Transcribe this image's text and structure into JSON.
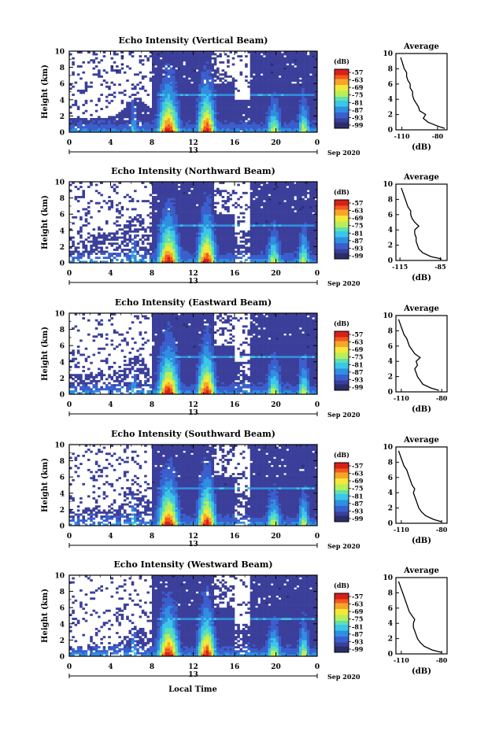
{
  "figure": {
    "x_axis_label": "Local Time",
    "date_label": "Sep 2020",
    "colorbar_unit": "(dB)",
    "colorbar_ticks": [
      "-57",
      "-63",
      "-69",
      "-75",
      "-81",
      "-87",
      "-93",
      "-99"
    ],
    "colormap": [
      "#2b2d6b",
      "#3b3f9a",
      "#3a5fcd",
      "#2f8fe0",
      "#3cc6e8",
      "#5fe0b0",
      "#b8ee5a",
      "#f4e83a",
      "#f7a52a",
      "#f05a1e",
      "#d8201a"
    ],
    "colorbar_top_color": "#d8201a",
    "colorbar_bottom_color": "#2b2d6b"
  },
  "chart_data": [
    {
      "type": "heatmap",
      "title": "Echo Intensity (Vertical Beam)",
      "ylabel": "Height (km)",
      "xlabel": "Local Time",
      "x_ticks": [
        "0",
        "4",
        "8",
        "12",
        "16",
        "20",
        "0"
      ],
      "date_tick": "13",
      "date_label": "Sep 2020",
      "y_ticks": [
        "0",
        "2",
        "4",
        "6",
        "8",
        "10"
      ],
      "xlim": [
        0,
        24
      ],
      "ylim": [
        0,
        10
      ],
      "colorbar": {
        "unit": "(dB)",
        "ticks": [
          "-57",
          "-63",
          "-69",
          "-75",
          "-81",
          "-87",
          "-93",
          "-99"
        ]
      },
      "average_profile": {
        "title": "Average",
        "xlabel": "(dB)",
        "x_ticks": [
          "-110",
          "-80"
        ],
        "xlim": [
          -115,
          -72
        ],
        "ylim": [
          0,
          10
        ],
        "y_ticks": [
          "0",
          "2",
          "4",
          "6",
          "8",
          "10"
        ],
        "heights": [
          0.2,
          0.5,
          1.0,
          1.5,
          2.0,
          2.5,
          3.0,
          3.5,
          4.0,
          4.5,
          5.0,
          5.5,
          6.0,
          6.5,
          7.0,
          7.5,
          8.0,
          8.5,
          9.0,
          9.5
        ],
        "values": [
          -74,
          -80,
          -88,
          -92,
          -90,
          -95,
          -96,
          -98,
          -100,
          -101,
          -101,
          -103,
          -103,
          -105,
          -106,
          -106,
          -108,
          -109,
          -110,
          -111
        ]
      }
    },
    {
      "type": "heatmap",
      "title": "Echo Intensity (Northward Beam)",
      "ylabel": "Height (km)",
      "xlabel": "Local Time",
      "x_ticks": [
        "0",
        "4",
        "8",
        "12",
        "16",
        "20",
        "0"
      ],
      "date_tick": "13",
      "date_label": "Sep 2020",
      "y_ticks": [
        "0",
        "2",
        "4",
        "6",
        "8",
        "10"
      ],
      "xlim": [
        0,
        24
      ],
      "ylim": [
        0,
        10
      ],
      "colorbar": {
        "unit": "(dB)",
        "ticks": [
          "-57",
          "-63",
          "-69",
          "-75",
          "-81",
          "-87",
          "-93",
          "-99"
        ]
      },
      "average_profile": {
        "title": "Average",
        "xlabel": "(dB)",
        "x_ticks": [
          "-115",
          "-85"
        ],
        "xlim": [
          -118,
          -80
        ],
        "ylim": [
          0,
          10
        ],
        "y_ticks": [
          "0",
          "2",
          "4",
          "6",
          "8",
          "10"
        ],
        "heights": [
          0.2,
          0.5,
          1.0,
          1.5,
          2.0,
          2.5,
          3.0,
          3.5,
          4.0,
          4.5,
          5.0,
          5.5,
          6.0,
          6.5,
          7.0,
          7.5,
          8.0,
          8.5,
          9.0,
          9.5
        ],
        "values": [
          -84,
          -92,
          -98,
          -101,
          -102,
          -103,
          -103,
          -104,
          -104,
          -101,
          -104,
          -106,
          -107,
          -107,
          -109,
          -110,
          -111,
          -112,
          -113,
          -114
        ]
      }
    },
    {
      "type": "heatmap",
      "title": "Echo Intensity (Eastward Beam)",
      "ylabel": "Height (km)",
      "xlabel": "Local Time",
      "x_ticks": [
        "0",
        "4",
        "8",
        "12",
        "16",
        "20",
        "0"
      ],
      "date_tick": "13",
      "date_label": "Sep 2020",
      "y_ticks": [
        "0",
        "2",
        "4",
        "6",
        "8",
        "10"
      ],
      "xlim": [
        0,
        24
      ],
      "ylim": [
        0,
        10
      ],
      "colorbar": {
        "unit": "(dB)",
        "ticks": [
          "-57",
          "-63",
          "-69",
          "-75",
          "-81",
          "-87",
          "-93",
          "-99"
        ]
      },
      "average_profile": {
        "title": "Average",
        "xlabel": "(dB)",
        "x_ticks": [
          "-110",
          "-80"
        ],
        "xlim": [
          -114,
          -76
        ],
        "ylim": [
          0,
          10
        ],
        "y_ticks": [
          "0",
          "2",
          "4",
          "6",
          "8",
          "10"
        ],
        "heights": [
          0.2,
          0.5,
          1.0,
          1.5,
          2.0,
          2.5,
          3.0,
          3.5,
          4.0,
          4.5,
          5.0,
          5.5,
          6.0,
          6.5,
          7.0,
          7.5,
          8.0,
          8.5,
          9.0,
          9.5
        ],
        "values": [
          -82,
          -88,
          -94,
          -96,
          -98,
          -99,
          -100,
          -98,
          -99,
          -96,
          -100,
          -102,
          -104,
          -105,
          -106,
          -108,
          -109,
          -110,
          -111,
          -112
        ]
      }
    },
    {
      "type": "heatmap",
      "title": "Echo Intensity (Southward Beam)",
      "ylabel": "Height (km)",
      "xlabel": "Local Time",
      "x_ticks": [
        "0",
        "4",
        "8",
        "12",
        "16",
        "20",
        "0"
      ],
      "date_tick": "13",
      "date_label": "Sep 2020",
      "y_ticks": [
        "0",
        "2",
        "4",
        "6",
        "8",
        "10"
      ],
      "xlim": [
        0,
        24
      ],
      "ylim": [
        0,
        10
      ],
      "colorbar": {
        "unit": "(dB)",
        "ticks": [
          "-57",
          "-63",
          "-69",
          "-75",
          "-81",
          "-87",
          "-93",
          "-99"
        ]
      },
      "average_profile": {
        "title": "Average",
        "xlabel": "(dB)",
        "x_ticks": [
          "-110",
          "-80"
        ],
        "xlim": [
          -114,
          -76
        ],
        "ylim": [
          0,
          10
        ],
        "y_ticks": [
          "0",
          "2",
          "4",
          "6",
          "8",
          "10"
        ],
        "heights": [
          0.2,
          0.5,
          1.0,
          1.5,
          2.0,
          2.5,
          3.0,
          3.5,
          4.0,
          4.5,
          5.0,
          5.5,
          6.0,
          6.5,
          7.0,
          7.5,
          8.0,
          8.5,
          9.0,
          9.5
        ],
        "values": [
          -80,
          -86,
          -92,
          -95,
          -97,
          -98,
          -99,
          -100,
          -101,
          -100,
          -102,
          -103,
          -104,
          -105,
          -106,
          -108,
          -109,
          -110,
          -111,
          -112
        ]
      }
    },
    {
      "type": "heatmap",
      "title": "Echo Intensity (Westward Beam)",
      "ylabel": "Height (km)",
      "xlabel": "Local Time",
      "x_ticks": [
        "0",
        "4",
        "8",
        "12",
        "16",
        "20",
        "0"
      ],
      "date_tick": "13",
      "date_label": "Sep 2020",
      "y_ticks": [
        "0",
        "2",
        "4",
        "6",
        "8",
        "10"
      ],
      "xlim": [
        0,
        24
      ],
      "ylim": [
        0,
        10
      ],
      "colorbar": {
        "unit": "(dB)",
        "ticks": [
          "-57",
          "-63",
          "-69",
          "-75",
          "-81",
          "-87",
          "-93",
          "-99"
        ]
      },
      "average_profile": {
        "title": "Average",
        "xlabel": "(dB)",
        "x_ticks": [
          "-110",
          "-80"
        ],
        "xlim": [
          -114,
          -76
        ],
        "ylim": [
          0,
          10
        ],
        "y_ticks": [
          "0",
          "2",
          "4",
          "6",
          "8",
          "10"
        ],
        "heights": [
          0.2,
          0.5,
          1.0,
          1.5,
          2.0,
          2.5,
          3.0,
          3.5,
          4.0,
          4.5,
          5.0,
          5.5,
          6.0,
          6.5,
          7.0,
          7.5,
          8.0,
          8.5,
          9.0,
          9.5
        ],
        "values": [
          -80,
          -87,
          -93,
          -96,
          -98,
          -99,
          -100,
          -101,
          -101,
          -100,
          -102,
          -104,
          -105,
          -106,
          -107,
          -108,
          -109,
          -110,
          -111,
          -112
        ]
      }
    }
  ]
}
